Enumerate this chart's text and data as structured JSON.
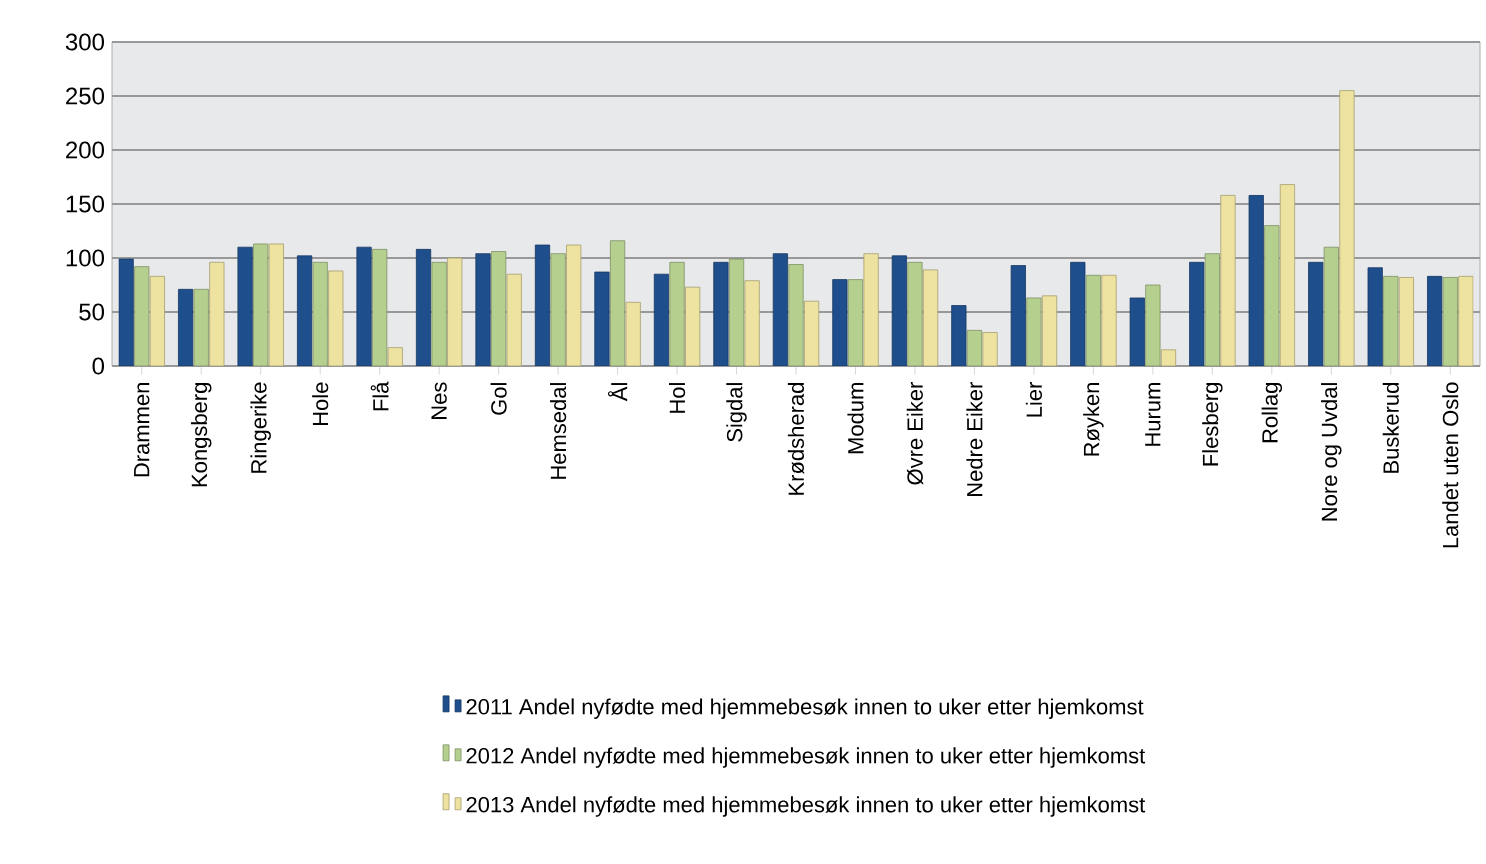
{
  "chart_data": {
    "type": "bar",
    "categories": [
      "Drammen",
      "Kongsberg",
      "Ringerike",
      "Hole",
      "Flå",
      "Nes",
      "Gol",
      "Hemsedal",
      "Ål",
      "Hol",
      "Sigdal",
      "Krødsherad",
      "Modum",
      "Øvre Eiker",
      "Nedre Eiker",
      "Lier",
      "Røyken",
      "Hurum",
      "Flesberg",
      "Rollag",
      "Nore og Uvdal",
      "Buskerud",
      "Landet uten Oslo"
    ],
    "series": [
      {
        "name": "2011 Andel nyfødte med hjemmebesøk innen to uker etter hjemkomst",
        "color": "#1f4e8c",
        "values": [
          99,
          71,
          110,
          102,
          110,
          108,
          104,
          112,
          87,
          85,
          96,
          104,
          80,
          102,
          56,
          93,
          96,
          63,
          96,
          158,
          96,
          91,
          83
        ]
      },
      {
        "name": "2012 Andel nyfødte med hjemmebesøk innen to uker etter hjemkomst",
        "color": "#b5cf8f",
        "values": [
          92,
          71,
          113,
          96,
          108,
          96,
          106,
          104,
          116,
          96,
          99,
          94,
          80,
          96,
          33,
          63,
          84,
          75,
          104,
          130,
          110,
          83,
          82
        ]
      },
      {
        "name": "2013 Andel nyfødte med hjemmebesøk innen to uker etter hjemkomst",
        "color": "#ede2a0",
        "values": [
          83,
          96,
          113,
          88,
          17,
          100,
          85,
          112,
          59,
          73,
          79,
          60,
          104,
          89,
          31,
          65,
          84,
          15,
          158,
          168,
          255,
          82,
          83
        ]
      }
    ],
    "ylim": [
      0,
      300
    ],
    "yticks": [
      0,
      50,
      100,
      150,
      200,
      250,
      300
    ],
    "grid": "y",
    "legend": "bottom"
  }
}
